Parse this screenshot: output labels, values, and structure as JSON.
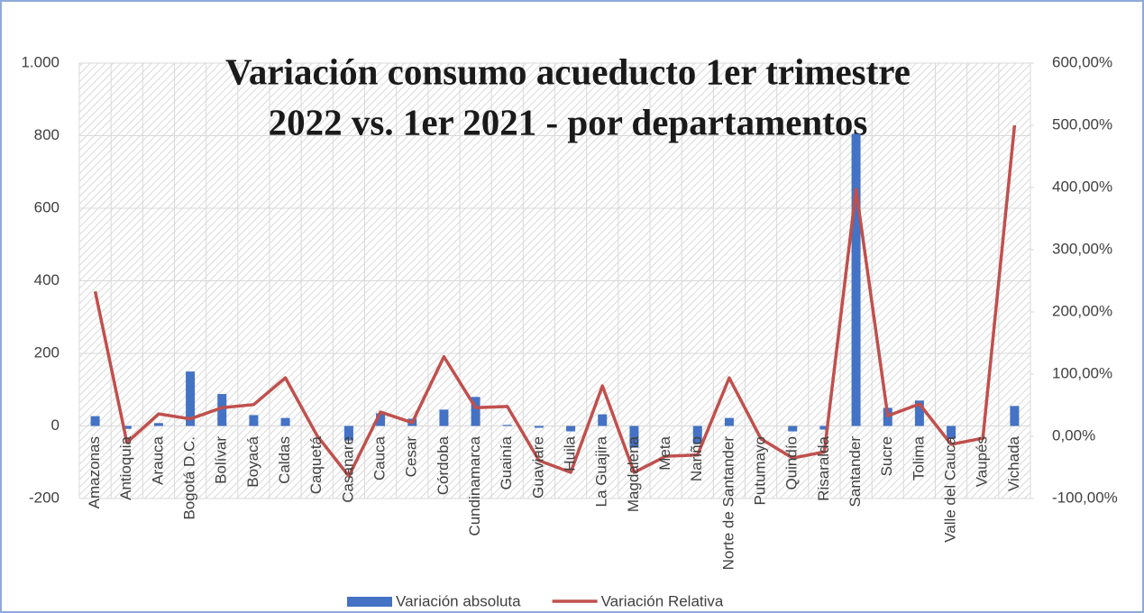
{
  "chart_data": {
    "type": "bar_line",
    "title": [
      "Variación consumo acueducto 1er trimestre",
      "2022 vs. 1er 2021 - por departamentos"
    ],
    "categories": [
      "Amazonas",
      "Antioquia",
      "Arauca",
      "Bogotá D.C.",
      "Bolívar",
      "Boyacá",
      "Caldas",
      "Caquetá",
      "Casanare",
      "Cauca",
      "Cesar",
      "Córdoba",
      "Cundinamarca",
      "Guainía",
      "Guaviare",
      "Huila",
      "La Guajira",
      "Magdalena",
      "Meta",
      "Nariño",
      "Norte de Santander",
      "Putumayo",
      "Quindío",
      "Risaralda",
      "Santander",
      "Sucre",
      "Tolima",
      "Valle del Cauca",
      "Vaupés",
      "Vichada"
    ],
    "series": [
      {
        "name": "Variación absoluta",
        "type": "bar",
        "color": "#4472c4",
        "axis": "y",
        "values": [
          27,
          -8,
          8,
          150,
          88,
          30,
          22,
          0,
          -40,
          35,
          20,
          45,
          80,
          3,
          -5,
          -15,
          32,
          -60,
          0,
          -50,
          22,
          0,
          -15,
          -10,
          805,
          50,
          70,
          -35,
          0,
          55
        ]
      },
      {
        "name": "Variación Relativa",
        "type": "line",
        "color": "#c0504d",
        "axis": "y2",
        "values": [
          233,
          -10,
          36,
          28,
          46,
          51,
          94,
          1,
          -64,
          39,
          22,
          128,
          46,
          48,
          -39,
          -58,
          81,
          -58,
          -32,
          -30,
          94,
          -4,
          -35,
          -25,
          397,
          33,
          52,
          -13,
          -3,
          500
        ]
      }
    ],
    "ylim": [
      -200,
      1000
    ],
    "yticks": [
      -200,
      0,
      200,
      400,
      600,
      800,
      {
        "value": 1000,
        "label": "1.000"
      }
    ],
    "y2lim": [
      -100,
      600
    ],
    "y2ticks": [
      {
        "value": -100,
        "label": "-100,00%"
      },
      {
        "value": 0,
        "label": "0,00%"
      },
      {
        "value": 100,
        "label": "100,00%"
      },
      {
        "value": 200,
        "label": "200,00%"
      },
      {
        "value": 300,
        "label": "300,00%"
      },
      {
        "value": 400,
        "label": "400,00%"
      },
      {
        "value": 500,
        "label": "500,00%"
      },
      {
        "value": 600,
        "label": "600,00%"
      }
    ],
    "grid": true,
    "legend": "bottom"
  }
}
